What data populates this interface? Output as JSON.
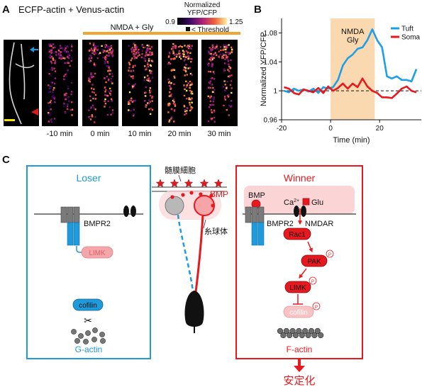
{
  "panel_a": {
    "letter": "A",
    "title": "ECFP-actin + Venus-actin",
    "treatment": "NMDA + Gly",
    "colorbar_title_1": "Normalized",
    "colorbar_title_2": "YFP/CFP",
    "colorbar_min": "0.9",
    "colorbar_max": "1.25",
    "threshold_label": "< Threshold",
    "timepoints": [
      "-10 min",
      "0 min",
      "10 min",
      "20 min",
      "30 min"
    ],
    "colors": {
      "bar": "#f0a630",
      "arrow_blue": "#1a9be0",
      "arrow_red": "#e01919",
      "scale_bar": "#f2e600"
    }
  },
  "panel_b": {
    "letter": "B",
    "stim_label_1": "NMDA",
    "stim_label_2": "Gly",
    "shade_color": "#fad9b0"
  },
  "chart_data": {
    "type": "line",
    "xlabel": "Time (min)",
    "ylabel": "Normalized YFP/CFP",
    "xlim": [
      -20,
      37
    ],
    "ylim": [
      0.96,
      1.1
    ],
    "xticks": [
      -20,
      0,
      20
    ],
    "yticks": [
      0.96,
      1,
      1.04,
      1.08
    ],
    "ytick_labels": [
      "0.96",
      "1",
      "1.04",
      "1.08"
    ],
    "xtick_labels": [
      "-20",
      "0",
      "20"
    ],
    "shaded_region": [
      0,
      18
    ],
    "baseline": 1,
    "legend_position": "top-right",
    "series": [
      {
        "name": "Tuft",
        "color": "#1e9fe8",
        "x": [
          -19,
          -17,
          -15,
          -13,
          -11,
          -9,
          -7,
          -5,
          -3,
          -1,
          1,
          3,
          5,
          7,
          9,
          11,
          13,
          15,
          17,
          19,
          21,
          23,
          25,
          27,
          29,
          31,
          33,
          35
        ],
        "y": [
          1.0,
          0.998,
          1.003,
          1.0,
          1.002,
          0.999,
          1.003,
          0.997,
          1.005,
          1.003,
          1.005,
          1.015,
          1.035,
          1.045,
          1.05,
          1.058,
          1.06,
          1.07,
          1.085,
          1.07,
          1.06,
          1.02,
          1.017,
          1.02,
          1.015,
          1.015,
          1.013,
          1.03
        ]
      },
      {
        "name": "Soma",
        "color": "#e8181d",
        "x": [
          -19,
          -17,
          -15,
          -13,
          -11,
          -9,
          -7,
          -5,
          -3,
          -1,
          1,
          3,
          5,
          7,
          9,
          11,
          13,
          15,
          17,
          19,
          21,
          23,
          25,
          27,
          29,
          31,
          33,
          35
        ],
        "y": [
          1.005,
          1.003,
          0.997,
          0.995,
          1.002,
          1.0,
          0.998,
          1.004,
          0.997,
          1.006,
          1.0,
          1.004,
          1.01,
          1.003,
          1.01,
          1.005,
          1.017,
          1.006,
          1.0,
          0.997,
          0.991,
          0.991,
          0.99,
          0.996,
          1.003,
          1.006,
          1.0,
          0.998
        ]
      }
    ]
  },
  "panel_c": {
    "letter": "C",
    "loser": {
      "title": "Loser",
      "receptor": "BMPR2",
      "kinase": "LIMK",
      "cofilin": "cofilin",
      "actin": "G-actin",
      "color": "#1f9bdc"
    },
    "center": {
      "myelin": "髄膜細胞",
      "bmp": "BMP",
      "glomerulus": "糸球体"
    },
    "winner": {
      "title": "Winner",
      "bmp": "BMP",
      "ca": "Ca",
      "ca_sup": "2+",
      "glu": "Glu",
      "receptor1": "BMPR2",
      "receptor2": "NMDAR",
      "rac1": "Rac1",
      "pak": "PAK",
      "limk": "LIMK",
      "cofilin": "cofilin",
      "p": "P",
      "actin": "F-actin",
      "result": "安定化",
      "color": "#e8191e"
    }
  }
}
